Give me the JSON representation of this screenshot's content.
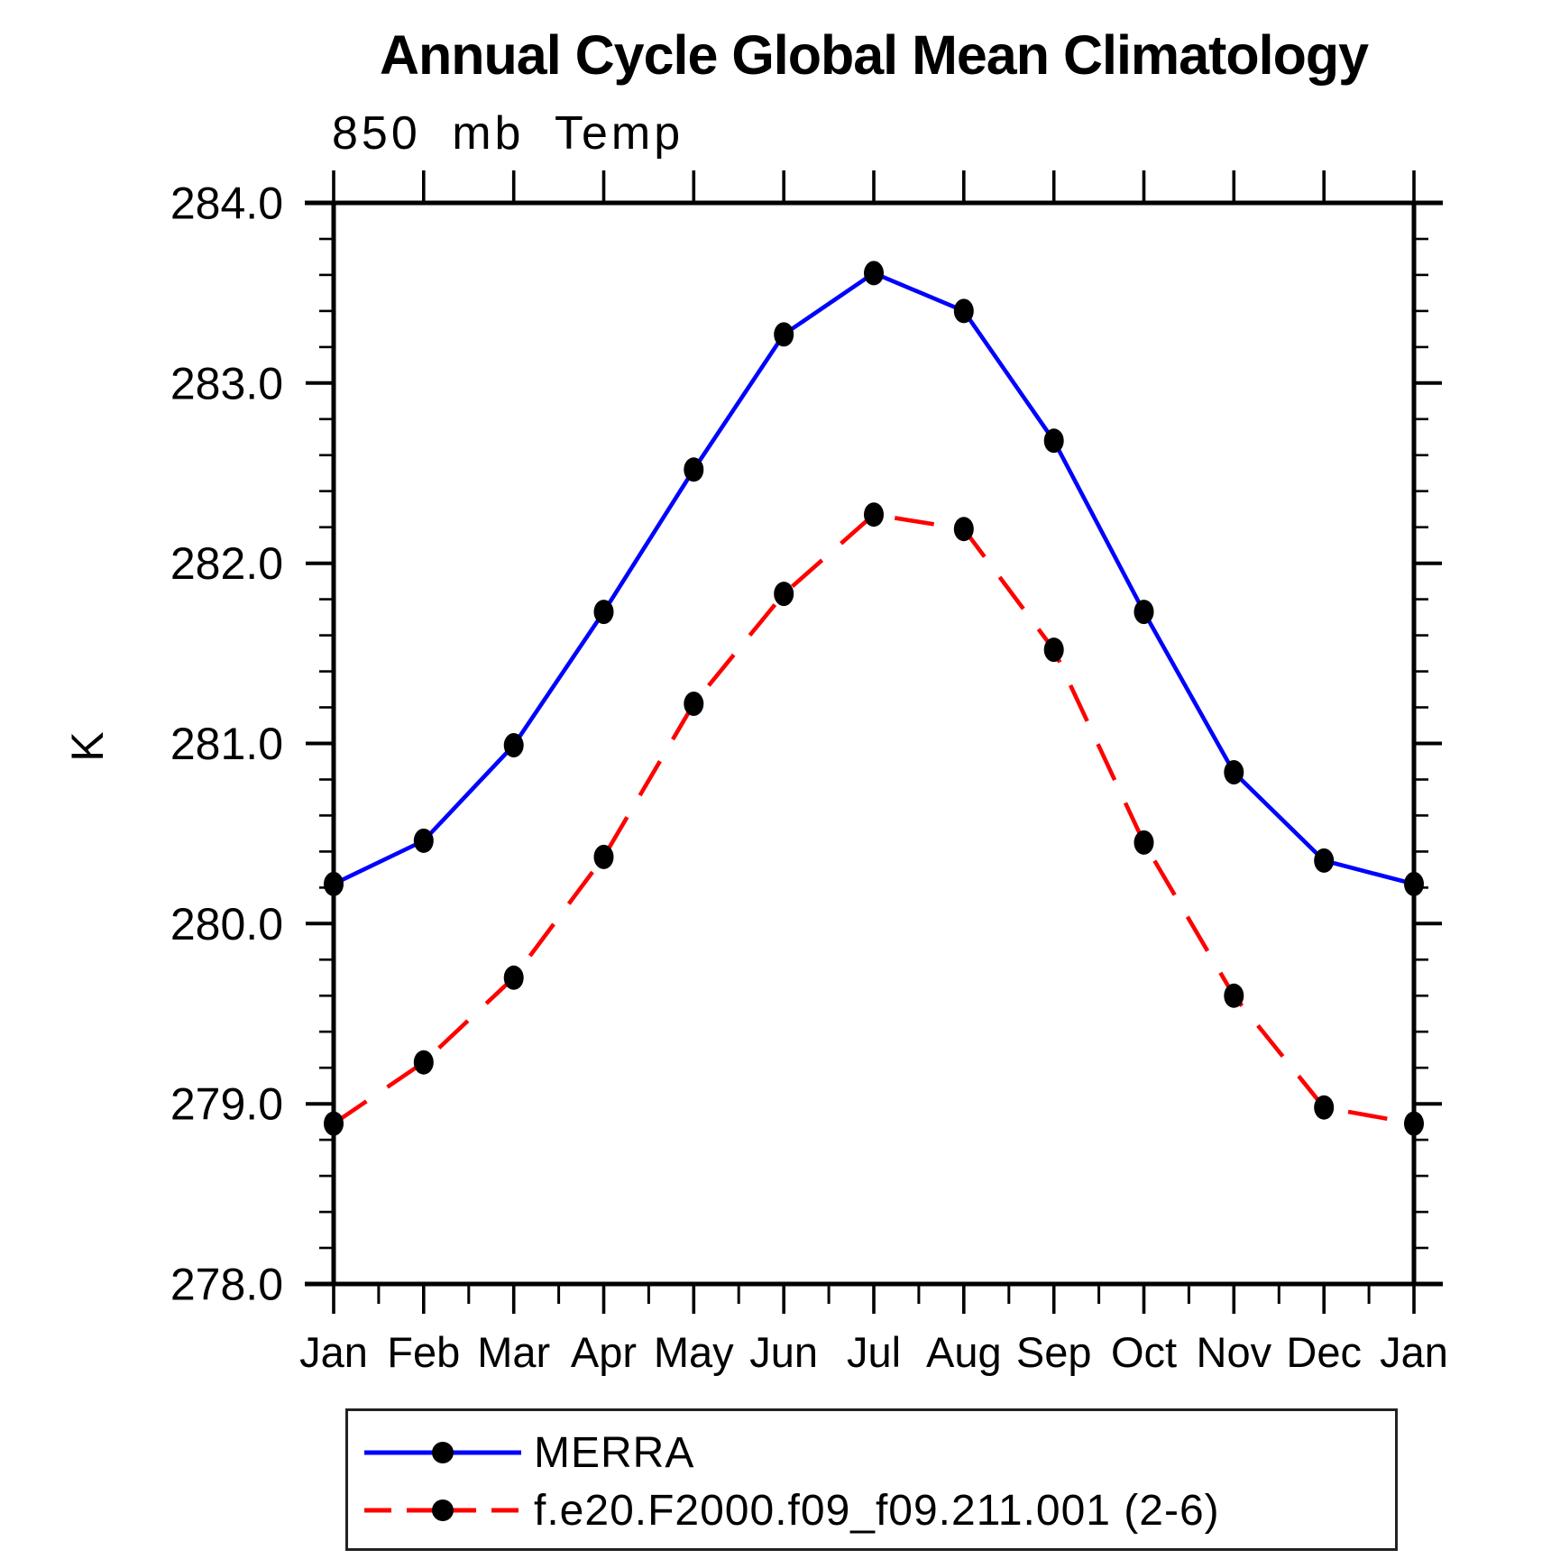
{
  "page": {
    "background": "#ffffff"
  },
  "chart_data": {
    "type": "line",
    "title": "Annual Cycle Global Mean Climatology",
    "subtitle": "850 mb Temp",
    "ylabel": "K",
    "xlabel": "",
    "categories": [
      "Jan",
      "Feb",
      "Mar",
      "Apr",
      "May",
      "Jun",
      "Jul",
      "Aug",
      "Sep",
      "Oct",
      "Nov",
      "Dec",
      "Jan"
    ],
    "ylim": [
      278.0,
      284.0
    ],
    "ytick_step": 1.0,
    "ytick_minor_step": 0.2,
    "ytick_labels": [
      "278.0",
      "279.0",
      "280.0",
      "281.0",
      "282.0",
      "283.0",
      "284.0"
    ],
    "x_minor_ticks_between_months": 1,
    "grid": false,
    "legend_position": "bottom-left",
    "axis_color": "#000000",
    "series": [
      {
        "name": "MERRA",
        "color": "#0000ff",
        "line_style": "solid",
        "marker": "filled-circle",
        "marker_color": "#000000",
        "values": [
          280.22,
          280.46,
          280.99,
          281.73,
          282.52,
          283.27,
          283.61,
          283.4,
          282.68,
          281.73,
          280.84,
          280.35,
          280.22
        ]
      },
      {
        "name": "f.e20.F2000.f09_f09.211.001 (2-6)",
        "color": "#ff0000",
        "line_style": "dashed",
        "marker": "filled-circle",
        "marker_color": "#000000",
        "values": [
          278.89,
          279.23,
          279.7,
          280.37,
          281.22,
          281.83,
          282.27,
          282.19,
          281.52,
          280.45,
          279.6,
          278.98,
          278.89
        ]
      }
    ]
  }
}
